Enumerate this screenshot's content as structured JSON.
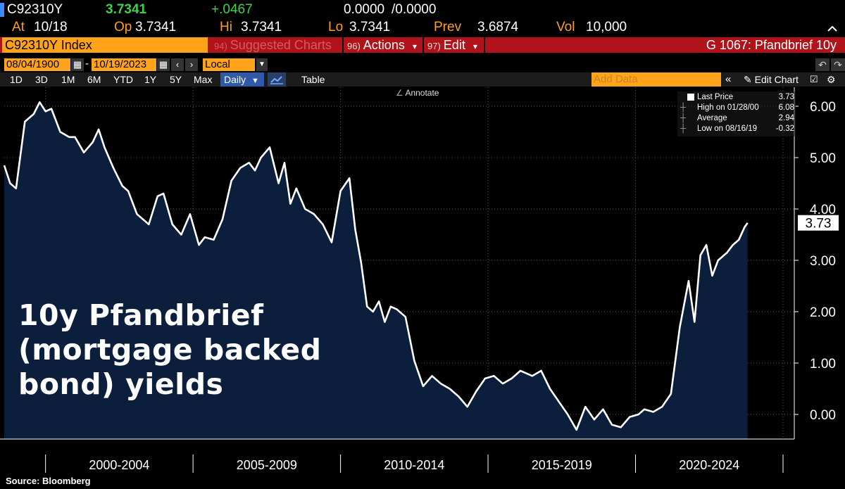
{
  "header": {
    "ticker": "C92310Y",
    "last": "3.7341",
    "change": "+.0467",
    "bidask_bid": "0.0000",
    "bidask_ask": "/0.0000",
    "at_label": "At",
    "at_value": "10/18",
    "op_label": "Op",
    "op_value": "3.7341",
    "hi_label": "Hi",
    "hi_value": "3.7341",
    "lo_label": "Lo",
    "lo_value": "3.7341",
    "prev_label": "Prev",
    "prev_value": "3.6874",
    "vol_label": "Vol",
    "vol_value": "10,000"
  },
  "command_bar": {
    "security": "C92310Y Index",
    "suggested_num": "94)",
    "suggested_label": "Suggested Charts",
    "actions_num": "96)",
    "actions_label": "Actions",
    "edit_num": "97)",
    "edit_label": "Edit",
    "dropdown_arrow": "▾",
    "page_title": "G 1067: Pfandbrief 10y"
  },
  "date_range": {
    "start": "08/04/1900",
    "end": "10/19/2023",
    "separator": "-",
    "currency": "Local CCY"
  },
  "toolbar": {
    "periods": [
      "1D",
      "3D",
      "1M",
      "6M",
      "YTD",
      "1Y",
      "5Y",
      "Max"
    ],
    "frequency": "Daily",
    "table_label": "Table",
    "add_data_placeholder": "Add Data",
    "edit_chart_label": "Edit Chart",
    "annotate_label": "Annotate"
  },
  "legend": {
    "last_price_label": "Last Price",
    "last_price_value": "3.73",
    "high_label": "High on 01/28/00",
    "high_value": "6.08",
    "average_label": "Average",
    "average_value": "2.94",
    "low_label": "Low on 08/16/19",
    "low_value": "-0.32"
  },
  "chart_title": [
    "10y Pfandbrief",
    "(mortgage backed",
    "bond) yields"
  ],
  "source": "Source: Bloomberg",
  "colors": {
    "fill": "#0b1f3d",
    "line": "#ffffff",
    "orange": "#ffa31a",
    "red_bar": "#b0141a",
    "green": "#3ad34a"
  },
  "chart_data": {
    "type": "area",
    "title": "10y Pfandbrief (mortgage backed bond) yields",
    "series_name": "C92310Y Index",
    "ylim": [
      -0.5,
      6.5
    ],
    "yticks": [
      "6.00",
      "5.00",
      "4.00",
      "3.00",
      "2.00",
      "1.00",
      "0.00"
    ],
    "ytick_values": [
      6,
      5,
      4,
      3,
      2,
      1,
      0
    ],
    "last_value_label": "3.73",
    "last_value": 3.73,
    "xlim": [
      1998.6,
      2025.0
    ],
    "xlabels": [
      "2000-2004",
      "2005-2009",
      "2010-2014",
      "2015-2019",
      "2020-2024"
    ],
    "xlabel_centers": [
      2002.5,
      2007.5,
      2012.5,
      2017.5,
      2022.5
    ],
    "x_separators": [
      2000.0,
      2005.0,
      2010.0,
      2015.0,
      2020.0
    ],
    "x": [
      1998.6,
      1998.8,
      1999.0,
      1999.3,
      1999.6,
      1999.8,
      2000.0,
      2000.2,
      2000.5,
      2000.8,
      2001.0,
      2001.3,
      2001.6,
      2001.8,
      2002.0,
      2002.3,
      2002.6,
      2002.8,
      2003.1,
      2003.5,
      2003.8,
      2004.0,
      2004.3,
      2004.6,
      2004.9,
      2005.2,
      2005.4,
      2005.7,
      2006.0,
      2006.3,
      2006.6,
      2006.9,
      2007.1,
      2007.3,
      2007.6,
      2007.9,
      2008.1,
      2008.3,
      2008.5,
      2008.8,
      2009.1,
      2009.4,
      2009.7,
      2010.0,
      2010.3,
      2010.5,
      2010.7,
      2010.9,
      2011.1,
      2011.3,
      2011.5,
      2011.7,
      2011.9,
      2012.2,
      2012.5,
      2012.8,
      2013.1,
      2013.4,
      2013.7,
      2014.0,
      2014.3,
      2014.6,
      2014.9,
      2015.2,
      2015.5,
      2015.8,
      2016.1,
      2016.5,
      2016.8,
      2017.1,
      2017.4,
      2017.7,
      2018.0,
      2018.3,
      2018.6,
      2018.9,
      2019.2,
      2019.5,
      2019.8,
      2020.1,
      2020.3,
      2020.6,
      2020.9,
      2021.2,
      2021.5,
      2021.8,
      2022.0,
      2022.2,
      2022.4,
      2022.6,
      2022.8,
      2022.9,
      2023.1,
      2023.3,
      2023.5,
      2023.7,
      2023.8
    ],
    "values": [
      4.85,
      4.5,
      4.4,
      5.7,
      5.85,
      6.08,
      5.9,
      5.95,
      5.5,
      5.4,
      5.4,
      5.1,
      5.3,
      5.55,
      5.2,
      4.8,
      4.45,
      4.35,
      3.9,
      3.7,
      4.25,
      4.3,
      3.7,
      3.5,
      3.9,
      3.3,
      3.45,
      3.4,
      3.8,
      4.55,
      4.8,
      4.9,
      4.75,
      5.0,
      5.2,
      4.5,
      4.9,
      4.1,
      4.4,
      4.0,
      3.9,
      3.7,
      3.35,
      4.35,
      4.6,
      3.6,
      2.95,
      2.1,
      2.0,
      2.2,
      1.8,
      2.1,
      2.05,
      1.9,
      1.05,
      0.55,
      0.75,
      0.6,
      0.5,
      0.35,
      0.15,
      0.45,
      0.7,
      0.75,
      0.6,
      0.7,
      0.85,
      0.75,
      0.85,
      0.5,
      0.25,
      0.0,
      -0.3,
      0.15,
      -0.1,
      0.1,
      -0.2,
      -0.25,
      -0.05,
      0.0,
      0.1,
      0.05,
      0.15,
      0.4,
      1.7,
      2.6,
      1.8,
      3.1,
      3.3,
      2.7,
      3.0,
      3.05,
      3.15,
      3.3,
      3.4,
      3.65,
      3.73
    ]
  }
}
